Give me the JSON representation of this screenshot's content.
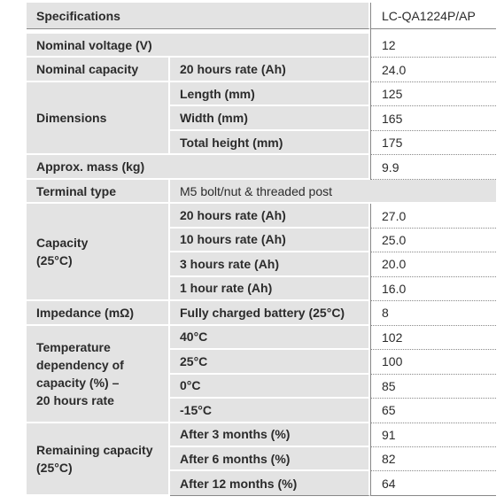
{
  "table": {
    "header": [
      "Specifications",
      "LC-QA1224P/AP"
    ],
    "rows": [
      {
        "label": [
          "Nominal voltage (V)"
        ],
        "value": "12"
      },
      {
        "label": [
          "Nominal capacity"
        ],
        "items": [
          {
            "name": "20 hours rate (Ah)",
            "value": "24.0"
          }
        ]
      },
      {
        "label": [
          "Dimensions"
        ],
        "items": [
          {
            "name": "Length (mm)",
            "value": "125"
          },
          {
            "name": "Width (mm)",
            "value": "165"
          },
          {
            "name": "Total height (mm)",
            "value": "175"
          }
        ]
      },
      {
        "label": [
          "Approx. mass (kg)"
        ],
        "value": "9.9"
      },
      {
        "label": [
          "Terminal type"
        ],
        "detail": "M5 bolt/nut & threaded post"
      },
      {
        "label": [
          "Capacity",
          "(25°C)"
        ],
        "items": [
          {
            "name": "20 hours rate (Ah)",
            "value": "27.0"
          },
          {
            "name": "10 hours rate (Ah)",
            "value": "25.0"
          },
          {
            "name": "3 hours rate (Ah)",
            "value": "20.0"
          },
          {
            "name": "1 hour rate (Ah)",
            "value": "16.0"
          }
        ]
      },
      {
        "label": [
          "Impedance (mΩ)"
        ],
        "items": [
          {
            "name": "Fully charged battery (25°C)",
            "value": "8"
          }
        ]
      },
      {
        "label": [
          "Temperature",
          "dependency of",
          "capacity (%) –",
          "20 hours rate"
        ],
        "items": [
          {
            "name": "40°C",
            "value": "102"
          },
          {
            "name": "25°C",
            "value": "100"
          },
          {
            "name": "0°C",
            "value": "85"
          },
          {
            "name": "-15°C",
            "value": "65"
          }
        ]
      },
      {
        "label": [
          "Remaining capacity",
          "(25°C)"
        ],
        "items": [
          {
            "name": "After 3 months (%)",
            "value": "91"
          },
          {
            "name": "After 6 months (%)",
            "value": "82"
          },
          {
            "name": "After 12 months (%)",
            "value": "64"
          }
        ]
      }
    ]
  }
}
